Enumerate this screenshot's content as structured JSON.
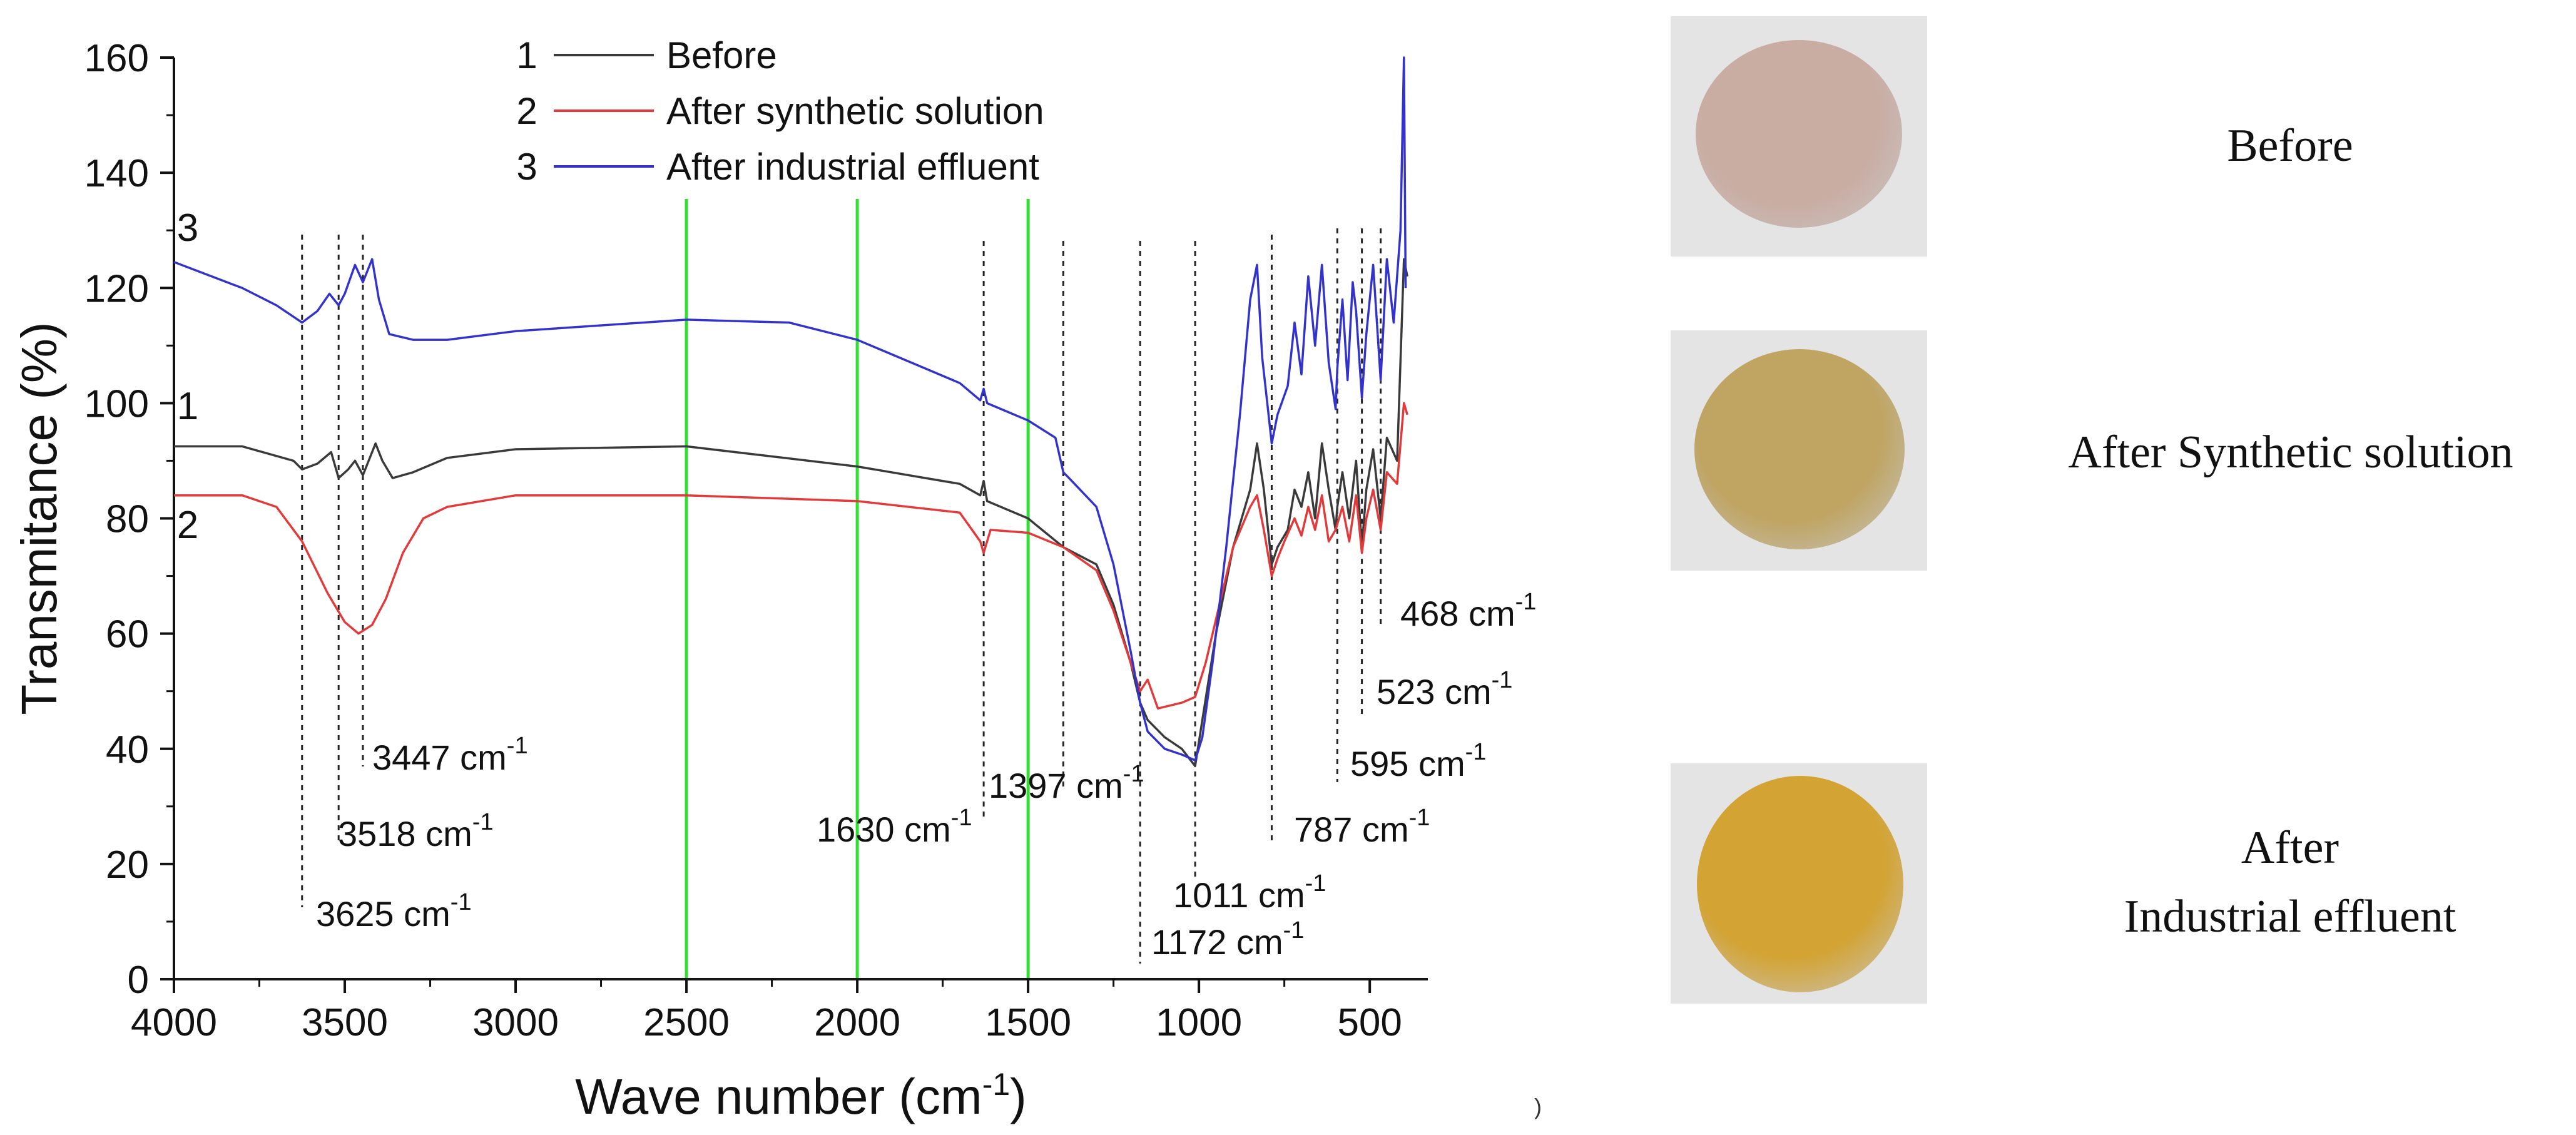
{
  "chart_data": {
    "type": "line",
    "title": "",
    "xlabel": "Wave number (cm",
    "xlabel_sup": "-1",
    "xlabel_tail": ")",
    "ylabel": "Transmitance (%)",
    "xlim": [
      4000,
      330
    ],
    "ylim": [
      0,
      160
    ],
    "x_ticks": [
      4000,
      3500,
      3000,
      2500,
      2000,
      1500,
      1000,
      500
    ],
    "x_tick_labels": [
      "4000",
      "3500",
      "3000",
      "2500",
      "2000",
      "1500",
      "1000",
      "500"
    ],
    "y_ticks": [
      0,
      20,
      40,
      60,
      80,
      100,
      120,
      140,
      160
    ],
    "y_tick_labels": [
      "0",
      "20",
      "40",
      "60",
      "80",
      "100",
      "120",
      "140",
      "160"
    ],
    "series": [
      {
        "name": "Before",
        "number": "1",
        "color": "#3a3a3a",
        "points": [
          [
            4000,
            92.5
          ],
          [
            3800,
            92.5
          ],
          [
            3650,
            90
          ],
          [
            3625,
            88.5
          ],
          [
            3580,
            89.5
          ],
          [
            3540,
            91.5
          ],
          [
            3518,
            87
          ],
          [
            3490,
            88.5
          ],
          [
            3470,
            90
          ],
          [
            3447,
            87.5
          ],
          [
            3430,
            90
          ],
          [
            3410,
            93
          ],
          [
            3390,
            90
          ],
          [
            3360,
            87
          ],
          [
            3300,
            88
          ],
          [
            3200,
            90.5
          ],
          [
            3000,
            92
          ],
          [
            2500,
            92.5
          ],
          [
            2000,
            89
          ],
          [
            1800,
            87
          ],
          [
            1700,
            86
          ],
          [
            1640,
            84
          ],
          [
            1630,
            86.5
          ],
          [
            1620,
            83
          ],
          [
            1500,
            80
          ],
          [
            1397,
            75
          ],
          [
            1300,
            72
          ],
          [
            1250,
            65
          ],
          [
            1200,
            55
          ],
          [
            1172,
            48
          ],
          [
            1150,
            45
          ],
          [
            1100,
            42
          ],
          [
            1050,
            40
          ],
          [
            1011,
            37
          ],
          [
            990,
            45
          ],
          [
            950,
            60
          ],
          [
            900,
            75
          ],
          [
            850,
            85
          ],
          [
            830,
            93
          ],
          [
            810,
            85
          ],
          [
            787,
            72
          ],
          [
            770,
            75
          ],
          [
            740,
            78
          ],
          [
            720,
            85
          ],
          [
            700,
            82
          ],
          [
            680,
            88
          ],
          [
            660,
            80
          ],
          [
            640,
            93
          ],
          [
            620,
            85
          ],
          [
            600,
            78
          ],
          [
            595,
            82
          ],
          [
            580,
            88
          ],
          [
            560,
            80
          ],
          [
            540,
            90
          ],
          [
            523,
            75
          ],
          [
            510,
            85
          ],
          [
            490,
            92
          ],
          [
            468,
            80
          ],
          [
            450,
            94
          ],
          [
            420,
            90
          ],
          [
            400,
            125
          ],
          [
            390,
            122
          ]
        ]
      },
      {
        "name": "After synthetic solution",
        "number": "2",
        "color": "#e23a3a",
        "points": [
          [
            4000,
            84
          ],
          [
            3800,
            84
          ],
          [
            3700,
            82
          ],
          [
            3625,
            76
          ],
          [
            3550,
            67
          ],
          [
            3500,
            62
          ],
          [
            3460,
            60
          ],
          [
            3420,
            61.5
          ],
          [
            3380,
            66
          ],
          [
            3330,
            74
          ],
          [
            3270,
            80
          ],
          [
            3200,
            82
          ],
          [
            3000,
            84
          ],
          [
            2500,
            84
          ],
          [
            2000,
            83
          ],
          [
            1700,
            81
          ],
          [
            1640,
            76
          ],
          [
            1630,
            74
          ],
          [
            1610,
            78
          ],
          [
            1500,
            77.5
          ],
          [
            1397,
            75
          ],
          [
            1300,
            71
          ],
          [
            1250,
            64
          ],
          [
            1200,
            55
          ],
          [
            1172,
            50
          ],
          [
            1150,
            52
          ],
          [
            1120,
            47
          ],
          [
            1050,
            48
          ],
          [
            1011,
            49
          ],
          [
            980,
            55
          ],
          [
            940,
            65
          ],
          [
            900,
            75
          ],
          [
            850,
            82
          ],
          [
            830,
            84
          ],
          [
            810,
            78
          ],
          [
            787,
            70
          ],
          [
            770,
            73
          ],
          [
            750,
            76
          ],
          [
            720,
            80
          ],
          [
            700,
            77
          ],
          [
            680,
            82
          ],
          [
            660,
            78
          ],
          [
            640,
            84
          ],
          [
            620,
            76
          ],
          [
            600,
            78
          ],
          [
            580,
            82
          ],
          [
            560,
            76
          ],
          [
            540,
            84
          ],
          [
            523,
            74
          ],
          [
            510,
            80
          ],
          [
            490,
            85
          ],
          [
            468,
            78
          ],
          [
            450,
            88
          ],
          [
            420,
            86
          ],
          [
            400,
            100
          ],
          [
            390,
            98
          ]
        ]
      },
      {
        "name": "After industrial effluent",
        "number": "3",
        "color": "#3333cc",
        "points": [
          [
            4000,
            124.5
          ],
          [
            3800,
            120
          ],
          [
            3700,
            117
          ],
          [
            3625,
            114
          ],
          [
            3580,
            116
          ],
          [
            3545,
            119
          ],
          [
            3518,
            117
          ],
          [
            3500,
            119
          ],
          [
            3470,
            124
          ],
          [
            3447,
            121
          ],
          [
            3420,
            125
          ],
          [
            3400,
            118
          ],
          [
            3370,
            112
          ],
          [
            3300,
            111
          ],
          [
            3200,
            111
          ],
          [
            3000,
            112.5
          ],
          [
            2500,
            114.5
          ],
          [
            2200,
            114
          ],
          [
            2000,
            111
          ],
          [
            1800,
            106
          ],
          [
            1700,
            103.5
          ],
          [
            1640,
            100.5
          ],
          [
            1630,
            102.5
          ],
          [
            1620,
            100
          ],
          [
            1500,
            97
          ],
          [
            1420,
            94
          ],
          [
            1397,
            88
          ],
          [
            1380,
            87
          ],
          [
            1300,
            82
          ],
          [
            1250,
            72
          ],
          [
            1200,
            57
          ],
          [
            1172,
            48
          ],
          [
            1150,
            43
          ],
          [
            1100,
            40
          ],
          [
            1050,
            39
          ],
          [
            1011,
            38
          ],
          [
            990,
            42
          ],
          [
            960,
            55
          ],
          [
            920,
            75
          ],
          [
            880,
            98
          ],
          [
            850,
            118
          ],
          [
            830,
            124
          ],
          [
            815,
            108
          ],
          [
            800,
            100
          ],
          [
            787,
            93
          ],
          [
            770,
            98
          ],
          [
            740,
            103
          ],
          [
            720,
            114
          ],
          [
            700,
            105
          ],
          [
            680,
            122
          ],
          [
            660,
            110
          ],
          [
            640,
            124
          ],
          [
            620,
            107
          ],
          [
            600,
            99
          ],
          [
            595,
            106
          ],
          [
            580,
            118
          ],
          [
            565,
            104
          ],
          [
            550,
            121
          ],
          [
            540,
            116
          ],
          [
            523,
            101
          ],
          [
            510,
            112
          ],
          [
            490,
            124
          ],
          [
            468,
            104
          ],
          [
            450,
            125
          ],
          [
            430,
            114
          ],
          [
            410,
            130
          ],
          [
            400,
            160
          ],
          [
            395,
            120
          ]
        ]
      }
    ],
    "green_lines": [
      2500,
      2000,
      1500
    ],
    "peak_marks": [
      {
        "x": 3625,
        "label": "3625 cm",
        "sup": "-1"
      },
      {
        "x": 3518,
        "label": "3518 cm",
        "sup": "-1"
      },
      {
        "x": 3447,
        "label": "3447 cm",
        "sup": "-1"
      },
      {
        "x": 1630,
        "label": "1630 cm",
        "sup": "-1"
      },
      {
        "x": 1397,
        "label": "1397 cm",
        "sup": "-1"
      },
      {
        "x": 1172,
        "label": "1172 cm",
        "sup": "-1"
      },
      {
        "x": 1011,
        "label": "1011 cm",
        "sup": "-1"
      },
      {
        "x": 787,
        "label": "787 cm",
        "sup": "-1"
      },
      {
        "x": 595,
        "label": "595 cm",
        "sup": "-1"
      },
      {
        "x": 523,
        "label": "523 cm",
        "sup": "-1"
      },
      {
        "x": 468,
        "label": "468 cm",
        "sup": "-1"
      }
    ],
    "curve_labels": [
      {
        "series": 0,
        "text": "1"
      },
      {
        "series": 1,
        "text": "2"
      },
      {
        "series": 2,
        "text": "3"
      }
    ]
  },
  "samples": {
    "before": {
      "caption": "Before",
      "color": "#c9aca2"
    },
    "after_synthetic": {
      "caption": "After Synthetic solution",
      "color": "#bfa462"
    },
    "after_industrial_line1": "After",
    "after_industrial_line2": "Industrial effluent",
    "after_industrial_color": "#d3a333"
  },
  "stray_mark": ")"
}
